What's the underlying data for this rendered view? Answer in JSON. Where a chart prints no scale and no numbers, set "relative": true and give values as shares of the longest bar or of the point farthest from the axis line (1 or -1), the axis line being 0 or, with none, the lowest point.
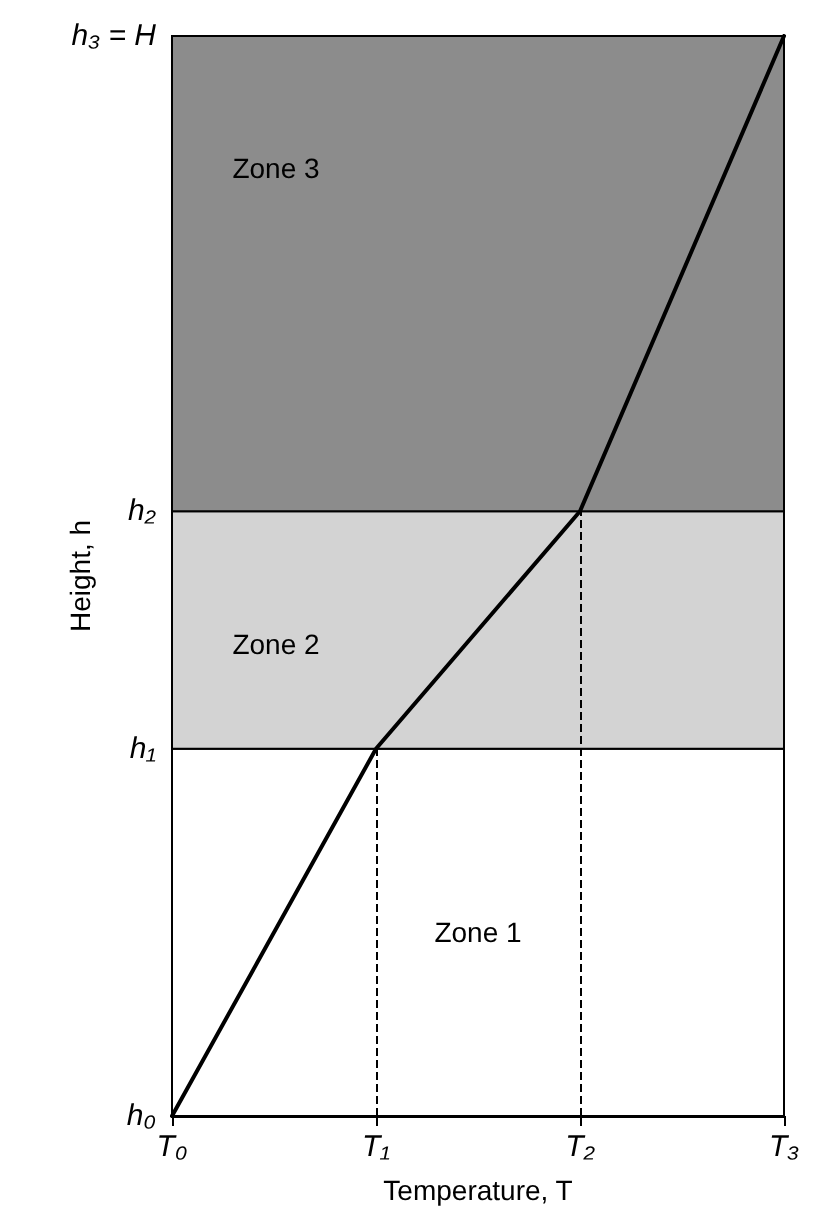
{
  "chart_data": {
    "type": "line",
    "xlabel": "Temperature, T",
    "ylabel": "Height, h",
    "relative": true,
    "categories": [
      "T₀",
      "T₁",
      "T₂",
      "T₃"
    ],
    "series": [
      {
        "color": "#000000",
        "values": [
          0,
          0.34,
          0.56,
          1
        ]
      }
    ],
    "annotations": [
      "h₀",
      "h₁",
      "h₂",
      "h₃ = H"
    ],
    "bands": [
      {
        "axis": "y",
        "from": 0,
        "to": 0.34,
        "label": "Zone 1",
        "color": "#ffffff"
      },
      {
        "axis": "y",
        "from": 0.34,
        "to": 0.56,
        "label": "Zone 2",
        "color": "#d3d3d3"
      },
      {
        "axis": "y",
        "from": 0.56,
        "to": 1,
        "label": "Zone 3",
        "color": "#8c8c8c"
      }
    ],
    "ref_lines": [
      {
        "axis": "x",
        "value": "T₁",
        "line_style": "dashed",
        "color": "#000000"
      },
      {
        "axis": "x",
        "value": "T₂",
        "line_style": "dashed",
        "color": "#000000"
      }
    ],
    "grid": false,
    "marker": "none",
    "line_style": "solid"
  }
}
